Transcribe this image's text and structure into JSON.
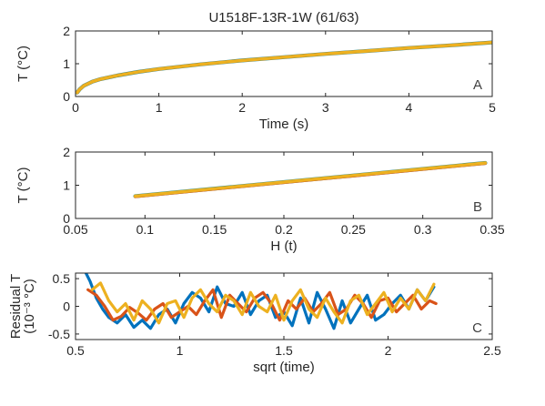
{
  "title": "U1518F-13R-1W (61/63)",
  "colors": {
    "blue": "#0072BD",
    "orange": "#D95319",
    "yellow": "#EDB120",
    "teal": "#2a8a86",
    "axis": "#262626",
    "letter": "#404040"
  },
  "chart_data": [
    {
      "type": "line",
      "panel_label": "A",
      "xlabel": "Time (s)",
      "ylabel": "T (°C)",
      "xlim": [
        0,
        5
      ],
      "ylim": [
        0,
        2
      ],
      "xticks": [
        0,
        1,
        2,
        3,
        4,
        5
      ],
      "xtick_labels": [
        "0",
        "1",
        "2",
        "3",
        "4",
        "5"
      ],
      "yticks": [
        0,
        1,
        2
      ],
      "ytick_labels": [
        "0",
        "1",
        "2"
      ],
      "grid": false,
      "x": [
        0.02,
        0.05,
        0.1,
        0.2,
        0.3,
        0.5,
        0.75,
        1.0,
        1.5,
        2.0,
        2.5,
        3.0,
        3.5,
        4.0,
        4.5,
        5.0
      ],
      "series": [
        {
          "values": [
            0.12,
            0.22,
            0.33,
            0.45,
            0.53,
            0.64,
            0.75,
            0.84,
            0.98,
            1.1,
            1.2,
            1.3,
            1.39,
            1.48,
            1.56,
            1.65
          ],
          "color_key": "teal"
        },
        {
          "values": [
            0.12,
            0.22,
            0.33,
            0.45,
            0.53,
            0.64,
            0.75,
            0.84,
            0.98,
            1.1,
            1.2,
            1.3,
            1.39,
            1.48,
            1.56,
            1.65
          ],
          "color_key": "orange"
        },
        {
          "values": [
            0.12,
            0.22,
            0.33,
            0.45,
            0.53,
            0.64,
            0.75,
            0.84,
            0.98,
            1.1,
            1.2,
            1.3,
            1.39,
            1.48,
            1.56,
            1.65
          ],
          "color_key": "yellow"
        }
      ]
    },
    {
      "type": "line",
      "panel_label": "B",
      "xlabel": "H (t)",
      "ylabel": "T (°C)",
      "xlim": [
        0.05,
        0.35
      ],
      "ylim": [
        0,
        2
      ],
      "xticks": [
        0.05,
        0.1,
        0.15,
        0.2,
        0.25,
        0.3,
        0.35
      ],
      "xtick_labels": [
        "0.05",
        "0.1",
        "0.15",
        "0.2",
        "0.25",
        "0.3",
        "0.35"
      ],
      "yticks": [
        0,
        1,
        2
      ],
      "ytick_labels": [
        "0",
        "1",
        "2"
      ],
      "grid": false,
      "x": [
        0.093,
        0.345
      ],
      "series": [
        {
          "values": [
            0.67,
            1.67
          ],
          "color_key": "teal"
        },
        {
          "values": [
            0.66,
            1.66
          ],
          "color_key": "orange"
        },
        {
          "values": [
            0.67,
            1.67
          ],
          "color_key": "yellow"
        }
      ]
    },
    {
      "type": "line",
      "panel_label": "C",
      "xlabel": "sqrt (time)",
      "ylabel": "Residual T (10⁻³ °C)",
      "ylabel_lines": [
        "Residual T",
        "(10⁻³ °C)"
      ],
      "xlim": [
        0.5,
        2.5
      ],
      "ylim": [
        -0.6,
        0.6
      ],
      "xticks": [
        0.5,
        1,
        1.5,
        2,
        2.5
      ],
      "xtick_labels": [
        "0.5",
        "1",
        "1.5",
        "2",
        "2.5"
      ],
      "yticks": [
        -0.5,
        0,
        0.5
      ],
      "ytick_labels": [
        "-0.5",
        "0",
        "0.5"
      ],
      "grid": false,
      "series": [
        {
          "color_key": "blue",
          "x": [
            0.55,
            0.57,
            0.6,
            0.63,
            0.66,
            0.7,
            0.74,
            0.78,
            0.82,
            0.86,
            0.9,
            0.94,
            0.98,
            1.02,
            1.06,
            1.1,
            1.14,
            1.18,
            1.22,
            1.26,
            1.3,
            1.34,
            1.38,
            1.42,
            1.46,
            1.5,
            1.54,
            1.58,
            1.62,
            1.66,
            1.7,
            1.74,
            1.78,
            1.82,
            1.86,
            1.9,
            1.94,
            1.98,
            2.02,
            2.06,
            2.1,
            2.14,
            2.18,
            2.22
          ],
          "values": [
            0.6,
            0.45,
            0.15,
            -0.05,
            -0.2,
            -0.3,
            -0.15,
            -0.38,
            -0.25,
            -0.4,
            -0.15,
            -0.05,
            -0.3,
            0.05,
            0.25,
            0.15,
            -0.1,
            0.35,
            0.05,
            0.0,
            0.25,
            -0.15,
            0.1,
            0.2,
            -0.2,
            -0.1,
            -0.35,
            0.15,
            -0.3,
            0.25,
            -0.05,
            -0.4,
            0.1,
            -0.3,
            -0.05,
            0.2,
            -0.25,
            -0.15,
            0.05,
            0.2,
            -0.05,
            0.3,
            0.1,
            0.35
          ]
        },
        {
          "color_key": "orange",
          "x": [
            0.56,
            0.6,
            0.64,
            0.68,
            0.72,
            0.76,
            0.8,
            0.84,
            0.88,
            0.92,
            0.96,
            1.0,
            1.04,
            1.08,
            1.12,
            1.16,
            1.2,
            1.24,
            1.28,
            1.32,
            1.36,
            1.4,
            1.44,
            1.48,
            1.52,
            1.56,
            1.6,
            1.64,
            1.68,
            1.72,
            1.76,
            1.8,
            1.84,
            1.88,
            1.92,
            1.96,
            2.0,
            2.04,
            2.08,
            2.12,
            2.16,
            2.2,
            2.23
          ],
          "values": [
            0.3,
            0.2,
            0.0,
            -0.25,
            -0.18,
            -0.02,
            -0.12,
            -0.25,
            -0.05,
            0.05,
            -0.2,
            -0.1,
            0.0,
            -0.15,
            0.1,
            0.3,
            -0.2,
            0.2,
            0.05,
            -0.1,
            0.15,
            0.25,
            0.05,
            -0.25,
            0.1,
            -0.05,
            0.15,
            -0.1,
            0.05,
            0.25,
            -0.15,
            -0.05,
            0.2,
            0.05,
            -0.2,
            0.1,
            0.15,
            -0.1,
            0.05,
            0.2,
            -0.05,
            0.1,
            0.05
          ]
        },
        {
          "color_key": "yellow",
          "x": [
            0.58,
            0.62,
            0.66,
            0.7,
            0.74,
            0.78,
            0.82,
            0.86,
            0.9,
            0.94,
            0.98,
            1.02,
            1.06,
            1.1,
            1.14,
            1.18,
            1.22,
            1.26,
            1.3,
            1.34,
            1.38,
            1.42,
            1.46,
            1.5,
            1.54,
            1.58,
            1.62,
            1.66,
            1.7,
            1.74,
            1.78,
            1.82,
            1.86,
            1.9,
            1.94,
            1.98,
            2.02,
            2.06,
            2.1,
            2.14,
            2.18,
            2.22
          ],
          "values": [
            0.3,
            0.42,
            0.1,
            -0.1,
            0.05,
            -0.25,
            0.1,
            -0.05,
            -0.3,
            0.05,
            0.1,
            -0.2,
            0.15,
            0.3,
            0.05,
            -0.1,
            0.2,
            0.1,
            -0.15,
            0.25,
            0.0,
            -0.1,
            0.2,
            -0.25,
            0.1,
            0.3,
            -0.05,
            -0.2,
            0.15,
            -0.1,
            -0.3,
            0.1,
            0.2,
            -0.15,
            0.05,
            0.25,
            -0.1,
            0.15,
            -0.05,
            0.3,
            0.1,
            0.4
          ]
        }
      ]
    }
  ]
}
